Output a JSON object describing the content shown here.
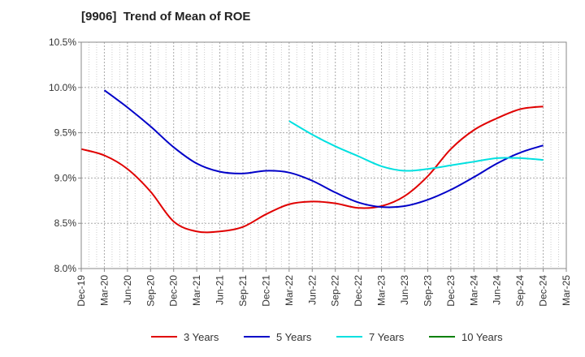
{
  "chart_data": {
    "type": "line",
    "title": "[9906]  Trend of Mean of ROE",
    "xlabel": "",
    "ylabel": "",
    "x_ticks": [
      "Dec-19",
      "Mar-20",
      "Jun-20",
      "Sep-20",
      "Dec-20",
      "Mar-21",
      "Jun-21",
      "Sep-21",
      "Dec-21",
      "Mar-22",
      "Jun-22",
      "Sep-22",
      "Dec-22",
      "Mar-23",
      "Jun-23",
      "Sep-23",
      "Dec-23",
      "Mar-24",
      "Jun-24",
      "Sep-24",
      "Dec-24",
      "Mar-25"
    ],
    "y_ticks": [
      "10.5%",
      "10.0%",
      "9.5%",
      "9.0%",
      "8.5%",
      "8.0%"
    ],
    "ylim": [
      8.0,
      10.5
    ],
    "grid": "dotted",
    "legend_position": "bottom",
    "series": [
      {
        "name": "3 Years",
        "color": "#e00000",
        "points": [
          [
            "Dec-19",
            9.32
          ],
          [
            "Mar-20",
            9.25
          ],
          [
            "Jun-20",
            9.1
          ],
          [
            "Sep-20",
            8.85
          ],
          [
            "Dec-20",
            8.52
          ],
          [
            "Mar-21",
            8.41
          ],
          [
            "Jun-21",
            8.41
          ],
          [
            "Sep-21",
            8.46
          ],
          [
            "Dec-21",
            8.6
          ],
          [
            "Mar-22",
            8.71
          ],
          [
            "Jun-22",
            8.74
          ],
          [
            "Sep-22",
            8.72
          ],
          [
            "Dec-22",
            8.67
          ],
          [
            "Mar-23",
            8.69
          ],
          [
            "Jun-23",
            8.8
          ],
          [
            "Sep-23",
            9.02
          ],
          [
            "Dec-23",
            9.32
          ],
          [
            "Mar-24",
            9.53
          ],
          [
            "Jun-24",
            9.66
          ],
          [
            "Sep-24",
            9.76
          ],
          [
            "Dec-24",
            9.79
          ]
        ]
      },
      {
        "name": "5 Years",
        "color": "#0000c8",
        "points": [
          [
            "Mar-20",
            9.97
          ],
          [
            "Jun-20",
            9.78
          ],
          [
            "Sep-20",
            9.57
          ],
          [
            "Dec-20",
            9.34
          ],
          [
            "Mar-21",
            9.16
          ],
          [
            "Jun-21",
            9.07
          ],
          [
            "Sep-21",
            9.05
          ],
          [
            "Dec-21",
            9.08
          ],
          [
            "Mar-22",
            9.06
          ],
          [
            "Jun-22",
            8.97
          ],
          [
            "Sep-22",
            8.84
          ],
          [
            "Dec-22",
            8.73
          ],
          [
            "Mar-23",
            8.68
          ],
          [
            "Jun-23",
            8.69
          ],
          [
            "Sep-23",
            8.76
          ],
          [
            "Dec-23",
            8.87
          ],
          [
            "Mar-24",
            9.01
          ],
          [
            "Jun-24",
            9.16
          ],
          [
            "Sep-24",
            9.28
          ],
          [
            "Dec-24",
            9.36
          ]
        ]
      },
      {
        "name": "7 Years",
        "color": "#00e0e0",
        "points": [
          [
            "Mar-22",
            9.63
          ],
          [
            "Jun-22",
            9.48
          ],
          [
            "Sep-22",
            9.35
          ],
          [
            "Dec-22",
            9.24
          ],
          [
            "Mar-23",
            9.13
          ],
          [
            "Jun-23",
            9.08
          ],
          [
            "Sep-23",
            9.1
          ],
          [
            "Dec-23",
            9.14
          ],
          [
            "Mar-24",
            9.18
          ],
          [
            "Jun-24",
            9.22
          ],
          [
            "Sep-24",
            9.22
          ],
          [
            "Dec-24",
            9.2
          ]
        ]
      },
      {
        "name": "10 Years",
        "color": "#008000",
        "points": []
      }
    ]
  }
}
